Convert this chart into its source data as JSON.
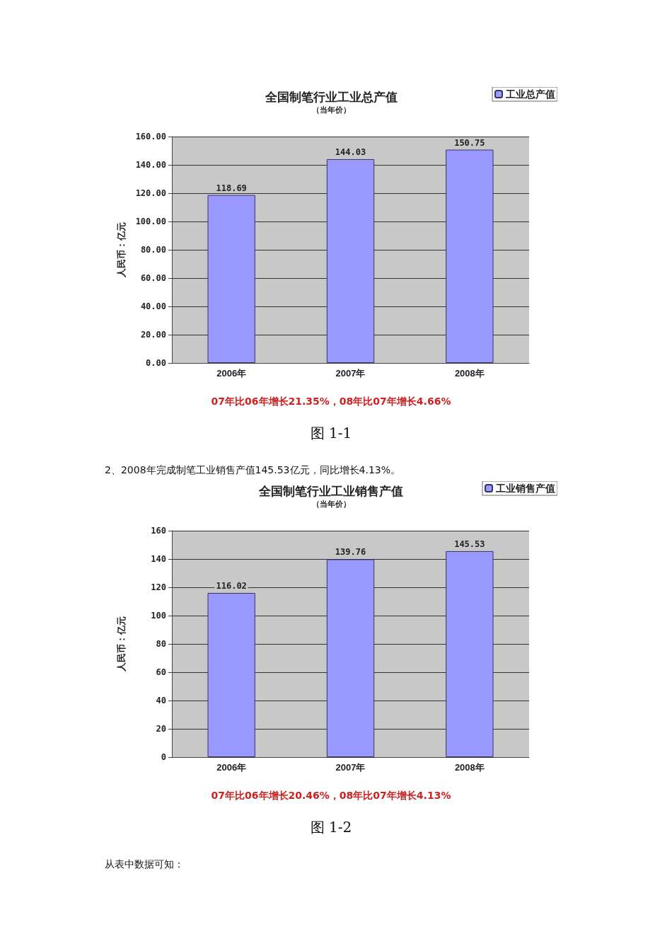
{
  "chart_data": [
    {
      "type": "bar",
      "title": "全国制笔行业工业总产值",
      "subtitle": "（当年价）",
      "ylabel": "人民币：亿元",
      "categories": [
        "2006年",
        "2007年",
        "2008年"
      ],
      "series": [
        {
          "name": "工业总产值",
          "color": "#9999ff",
          "values": [
            118.69,
            144.03,
            150.75
          ]
        }
      ],
      "ylim": [
        0,
        160
      ],
      "yticks": [
        {
          "value": 0,
          "label": "0.00"
        },
        {
          "value": 20,
          "label": "20.00"
        },
        {
          "value": 40,
          "label": "40.00"
        },
        {
          "value": 60,
          "label": "60.00"
        },
        {
          "value": 80,
          "label": "80.00"
        },
        {
          "value": 100,
          "label": "100.00"
        },
        {
          "value": 120,
          "label": "120.00"
        },
        {
          "value": 140,
          "label": "140.00"
        },
        {
          "value": 160,
          "label": "160.00"
        }
      ],
      "grid": "y",
      "legend": "top right",
      "data_labels": true,
      "annotations": [
        "07年比06年增长21.35%，08年比07年增长4.66%",
        "图 1-1",
        "2、2008年完成制笔工业销售产值145.53亿元，同比增长4.13%。"
      ]
    },
    {
      "type": "bar",
      "title": "全国制笔行业工业销售产值",
      "subtitle": "（当年价）",
      "ylabel": "人民币：亿元",
      "categories": [
        "2006年",
        "2007年",
        "2008年"
      ],
      "series": [
        {
          "name": "工业销售产值",
          "color": "#9999ff",
          "values": [
            116.02,
            139.76,
            145.53
          ]
        }
      ],
      "ylim": [
        0,
        160
      ],
      "yticks": [
        0,
        20,
        40,
        60,
        80,
        100,
        120,
        140,
        160
      ],
      "grid": "y",
      "legend": "top right",
      "data_labels": true,
      "annotations": [
        "07年比06年增长20.46%，08年比07年增长4.13%",
        "图 1-2",
        "从表中数据可知："
      ]
    }
  ]
}
